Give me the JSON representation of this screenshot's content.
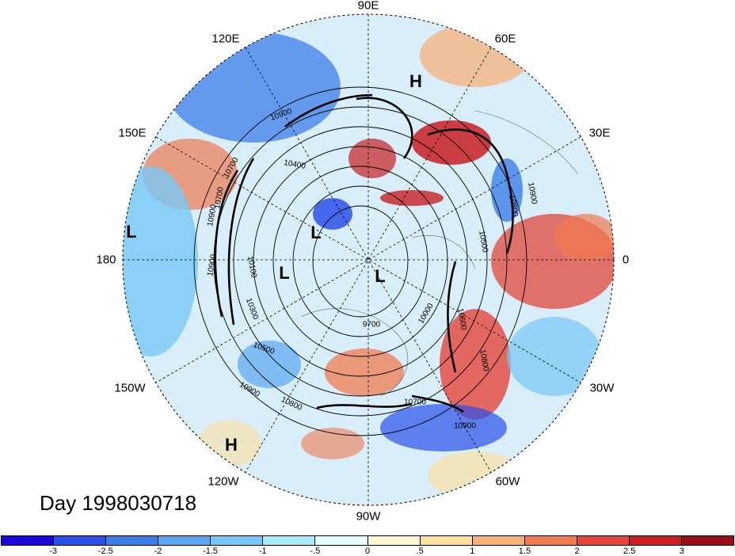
{
  "map": {
    "projection": "north-polar-stereographic",
    "longitude_labels": [
      "90E",
      "60E",
      "30E",
      "0",
      "30W",
      "60W",
      "90W",
      "120W",
      "150W",
      "180",
      "150E",
      "120E"
    ],
    "pressure_centers": [
      "H",
      "H",
      "L",
      "L",
      "L",
      "L"
    ],
    "contour_labels": [
      "10900",
      "10900",
      "10900",
      "10900",
      "10700",
      "10800",
      "10700",
      "10500",
      "10300",
      "10100",
      "9700",
      "10000",
      "10600",
      "10800",
      "10700",
      "10900",
      "10800",
      "10900",
      "10500",
      "10400"
    ],
    "timestamp": "Day 1998030718"
  },
  "colorbar": {
    "tick_labels": [
      "-3",
      "-2.5",
      "-2",
      "-1.5",
      "-1",
      "-.5",
      "0",
      ".5",
      "1",
      "1.5",
      "2",
      "2.5",
      "3"
    ],
    "colors": [
      "#1a08d9",
      "#2a50e8",
      "#3c7ee8",
      "#5aa6f0",
      "#78c8f5",
      "#a8ecf8",
      "#e4fbff",
      "#fff7d2",
      "#fde0a0",
      "#f7b27a",
      "#ef7b4f",
      "#e3453a",
      "#c81f22",
      "#980d18"
    ]
  }
}
